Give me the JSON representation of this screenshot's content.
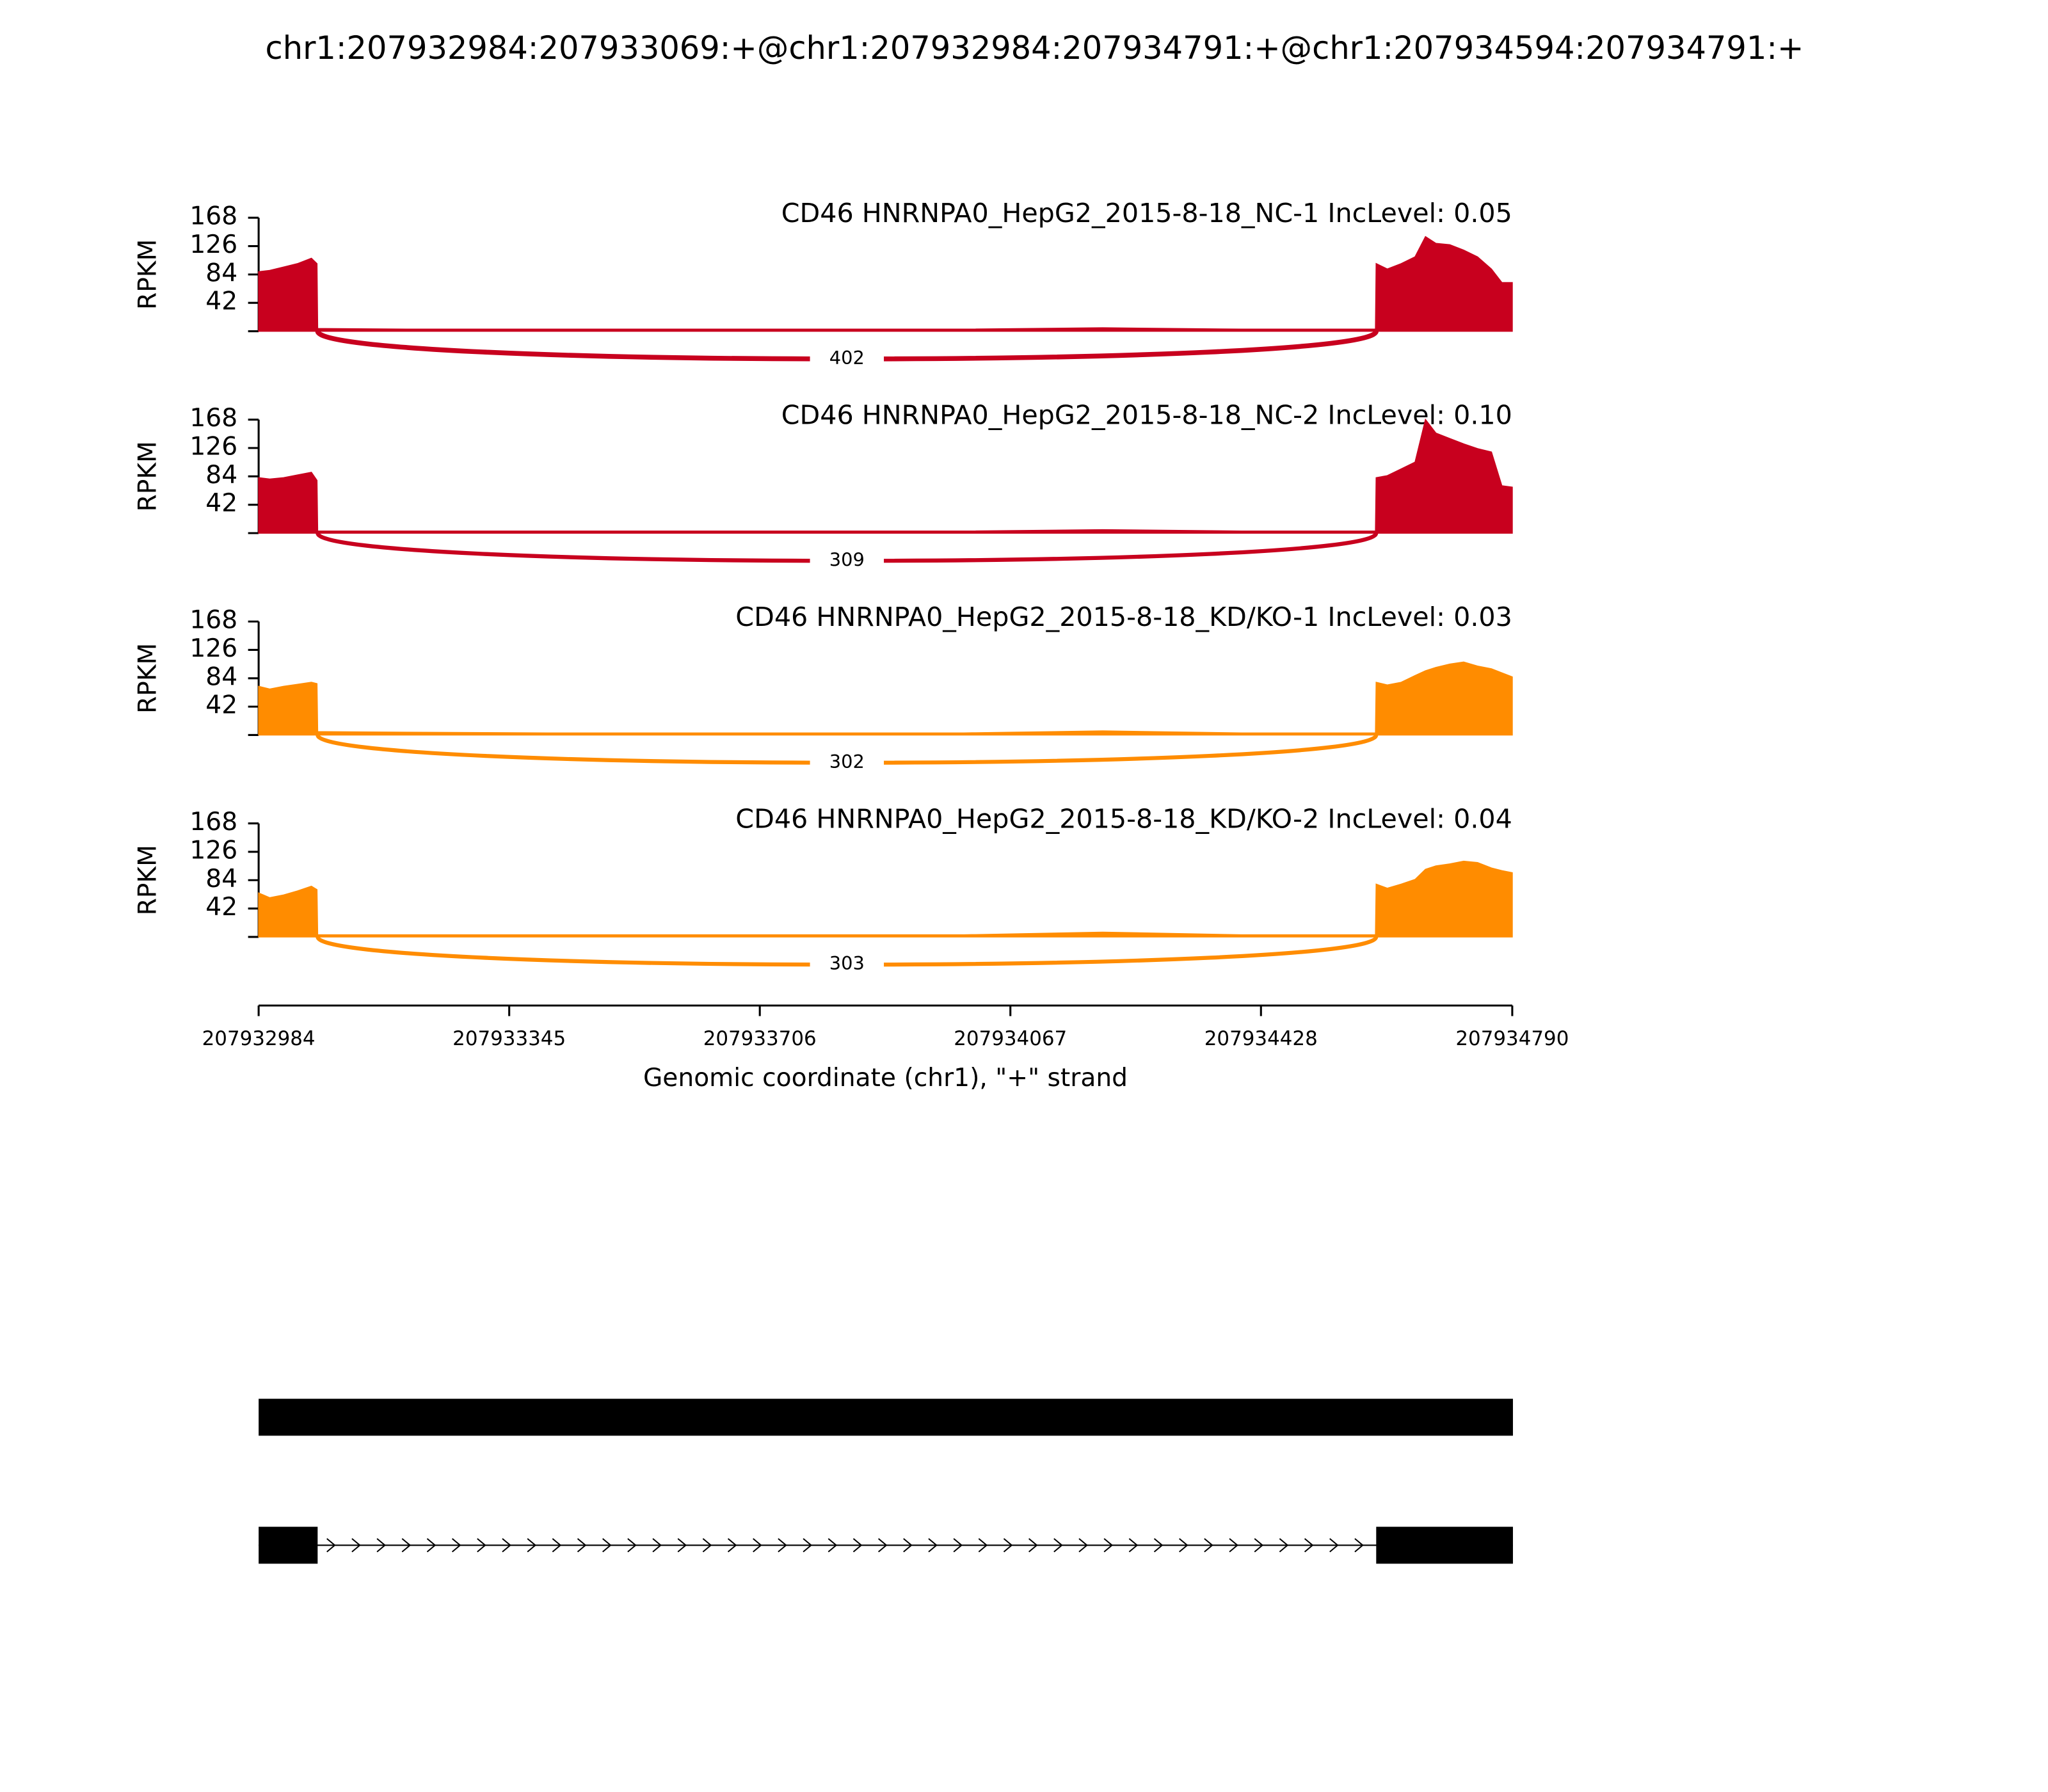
{
  "chart_data": {
    "type": "sashimi",
    "title": "chr1:207932984:207933069:+@chr1:207932984:207934791:+@chr1:207934594:207934791:+",
    "xlabel": "Genomic coordinate (chr1), \"+\" strand",
    "xlim": [
      207932984,
      207934790
    ],
    "xticks": [
      207932984,
      207933345,
      207933706,
      207934067,
      207934428,
      207934790
    ],
    "x": [
      207932984,
      207933000,
      207933020,
      207933040,
      207933060,
      207933068,
      207933069,
      207933200,
      207933400,
      207933600,
      207933800,
      207934000,
      207934200,
      207934400,
      207934593,
      207934594,
      207934610,
      207934630,
      207934650,
      207934665,
      207934680,
      207934700,
      207934720,
      207934740,
      207934760,
      207934775,
      207934790
    ],
    "panels": [
      {
        "title": "CD46 HNRNPA0_HepG2_2015-8-18_NC-1 IncLevel: 0.05",
        "color": "#c8001e",
        "ylabel": "RPKM",
        "ylim": [
          0,
          168
        ],
        "yticks": [
          42,
          84,
          126,
          168
        ],
        "values": [
          88,
          90,
          95,
          100,
          108,
          100,
          4,
          3,
          3,
          3,
          3,
          3,
          5,
          3,
          3,
          100,
          92,
          100,
          110,
          140,
          130,
          128,
          120,
          110,
          92,
          72,
          72
        ],
        "junctions": [
          {
            "start": 207933069,
            "end": 207934594,
            "count": 402
          }
        ]
      },
      {
        "title": "CD46 HNRNPA0_HepG2_2015-8-18_NC-2 IncLevel: 0.10",
        "color": "#c8001e",
        "ylabel": "RPKM",
        "ylim": [
          0,
          168
        ],
        "yticks": [
          42,
          84,
          126,
          168
        ],
        "values": [
          82,
          80,
          82,
          86,
          90,
          78,
          3,
          3,
          3,
          3,
          3,
          3,
          5,
          3,
          3,
          82,
          85,
          95,
          105,
          168,
          148,
          140,
          132,
          125,
          120,
          70,
          68
        ],
        "junctions": [
          {
            "start": 207933069,
            "end": 207934594,
            "count": 309
          }
        ]
      },
      {
        "title": "CD46 HNRNPA0_HepG2_2015-8-18_KD/KO-1 IncLevel: 0.03",
        "color": "#ff8c00",
        "ylabel": "RPKM",
        "ylim": [
          0,
          168
        ],
        "yticks": [
          42,
          84,
          126,
          168
        ],
        "values": [
          72,
          68,
          72,
          75,
          78,
          76,
          5,
          4,
          3,
          3,
          3,
          3,
          6,
          3,
          3,
          78,
          74,
          78,
          88,
          95,
          100,
          105,
          108,
          102,
          98,
          92,
          86
        ],
        "junctions": [
          {
            "start": 207933069,
            "end": 207934594,
            "count": 302
          }
        ]
      },
      {
        "title": "CD46 HNRNPA0_HepG2_2015-8-18_KD/KO-2 IncLevel: 0.04",
        "color": "#ff8c00",
        "ylabel": "RPKM",
        "ylim": [
          0,
          168
        ],
        "yticks": [
          42,
          84,
          126,
          168
        ],
        "values": [
          65,
          58,
          62,
          68,
          75,
          70,
          3,
          3,
          3,
          3,
          3,
          3,
          7,
          3,
          3,
          78,
          72,
          78,
          85,
          100,
          105,
          108,
          112,
          110,
          102,
          98,
          95
        ],
        "junctions": [
          {
            "start": 207933069,
            "end": 207934594,
            "count": 303
          }
        ]
      }
    ],
    "strand": "+",
    "transcripts": [
      {
        "exons": [
          [
            207932984,
            207934791
          ]
        ]
      },
      {
        "exons": [
          [
            207932984,
            207933069
          ],
          [
            207934594,
            207934791
          ]
        ]
      }
    ]
  }
}
